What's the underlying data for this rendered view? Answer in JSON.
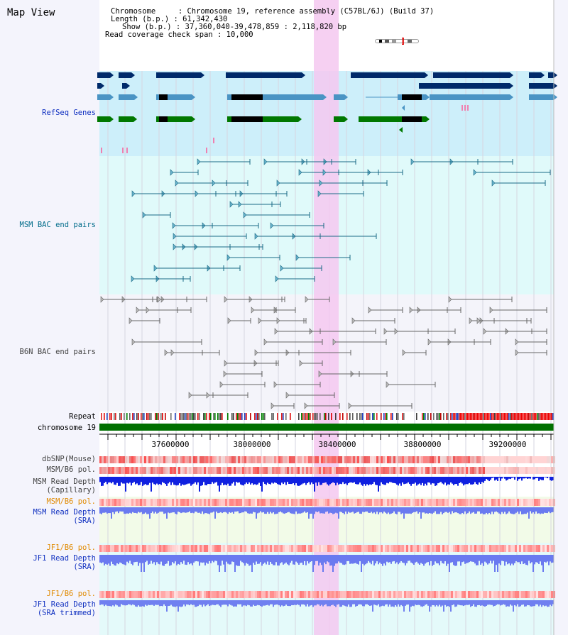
{
  "app": {
    "title": "Map View"
  },
  "header": {
    "lines": [
      "Chromosome     : Chromosome 19, reference assembly (C57BL/6J) (Build 37)",
      "Length (b.p.) : 61,342,430",
      "Show (b.p.) : 37,360,040-39,478,859 : 2,118,820 bp",
      "Read coverage check span : 10,000"
    ]
  },
  "tracks": {
    "refseq": "RefSeq Genes",
    "msm_bac": "MSM BAC end pairs",
    "b6n_bac": "B6N BAC end pairs",
    "repeat": "Repeat",
    "chromosome": "chromosome 19",
    "dbsnp": "dbSNP(Mouse)",
    "msm_b6_pol": "MSM/B6 pol.",
    "msm_depth_cap_1": "MSM Read Depth",
    "msm_depth_cap_2": "(Capillary)",
    "msm_b6_pol_2": "MSM/B6 pol.",
    "msm_depth_sra_1": "MSM Read Depth",
    "msm_depth_sra_2": "(SRA)",
    "jf1_b6_pol": "JF1/B6 pol.",
    "jf1_depth_sra_1": "JF1 Read Depth",
    "jf1_depth_sra_2": "(SRA)",
    "jf1_b6_pol_2": "JF1/B6 pol.",
    "jf1_depth_trim_1": "JF1 Read Depth",
    "jf1_depth_trim_2": "(SRA trimmed)"
  },
  "axis": {
    "ticks": [
      "37600000",
      "38000000",
      "38400000",
      "38800000",
      "39200000"
    ]
  },
  "colors": {
    "highlight": "#f4c8f0",
    "refseq_bg": "#cdeffa",
    "msm_bg": "#e0fafa",
    "b6n_bg": "#f4f4fa",
    "gene_navy": "#002a6a",
    "gene_steel": "#4a94c4",
    "gene_green": "#007800",
    "chromosome_bar": "#007000"
  }
}
